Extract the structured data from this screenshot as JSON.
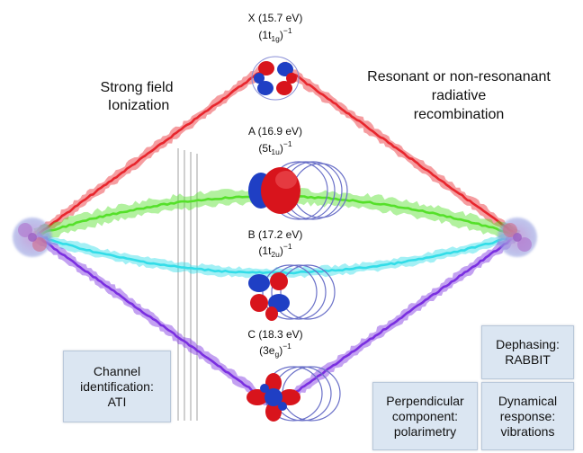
{
  "labels": {
    "left_process": [
      "Strong field",
      "Ionization"
    ],
    "right_process": [
      "Resonant or non-resonanant",
      "radiative",
      "recombination"
    ]
  },
  "states": [
    {
      "name": "X (15.7 eV)",
      "config_base": "(1t",
      "config_sub": "1g",
      "config_close": ")",
      "config_sup": "−1",
      "color": "#e8262d"
    },
    {
      "name": "A (16.9 eV)",
      "config_base": "(5t",
      "config_sub": "1u",
      "config_close": ")",
      "config_sup": "−1",
      "color": "#55e02a"
    },
    {
      "name": "B (17.2 eV)",
      "config_base": "(1t",
      "config_sub": "2u",
      "config_close": ")",
      "config_sup": "−1",
      "color": "#33dde8"
    },
    {
      "name": "C (18.3 eV)",
      "config_base": "(3e",
      "config_sub": "g",
      "config_close": ")",
      "config_sup": "−1",
      "color": "#7a2fe0"
    }
  ],
  "boxes": {
    "channel": [
      "Channel",
      "identification:",
      "ATI"
    ],
    "dephasing": [
      "Dephasing:",
      "RABBIT"
    ],
    "perpendicular": [
      "Perpendicular",
      "component:",
      "polarimetry"
    ],
    "dynamical": [
      "Dynamical",
      "response:",
      "vibrations"
    ]
  },
  "colors": {
    "box_fill": "#dbe6f2",
    "orbital_red": "#d8141c",
    "orbital_blue": "#1f3fc4"
  }
}
